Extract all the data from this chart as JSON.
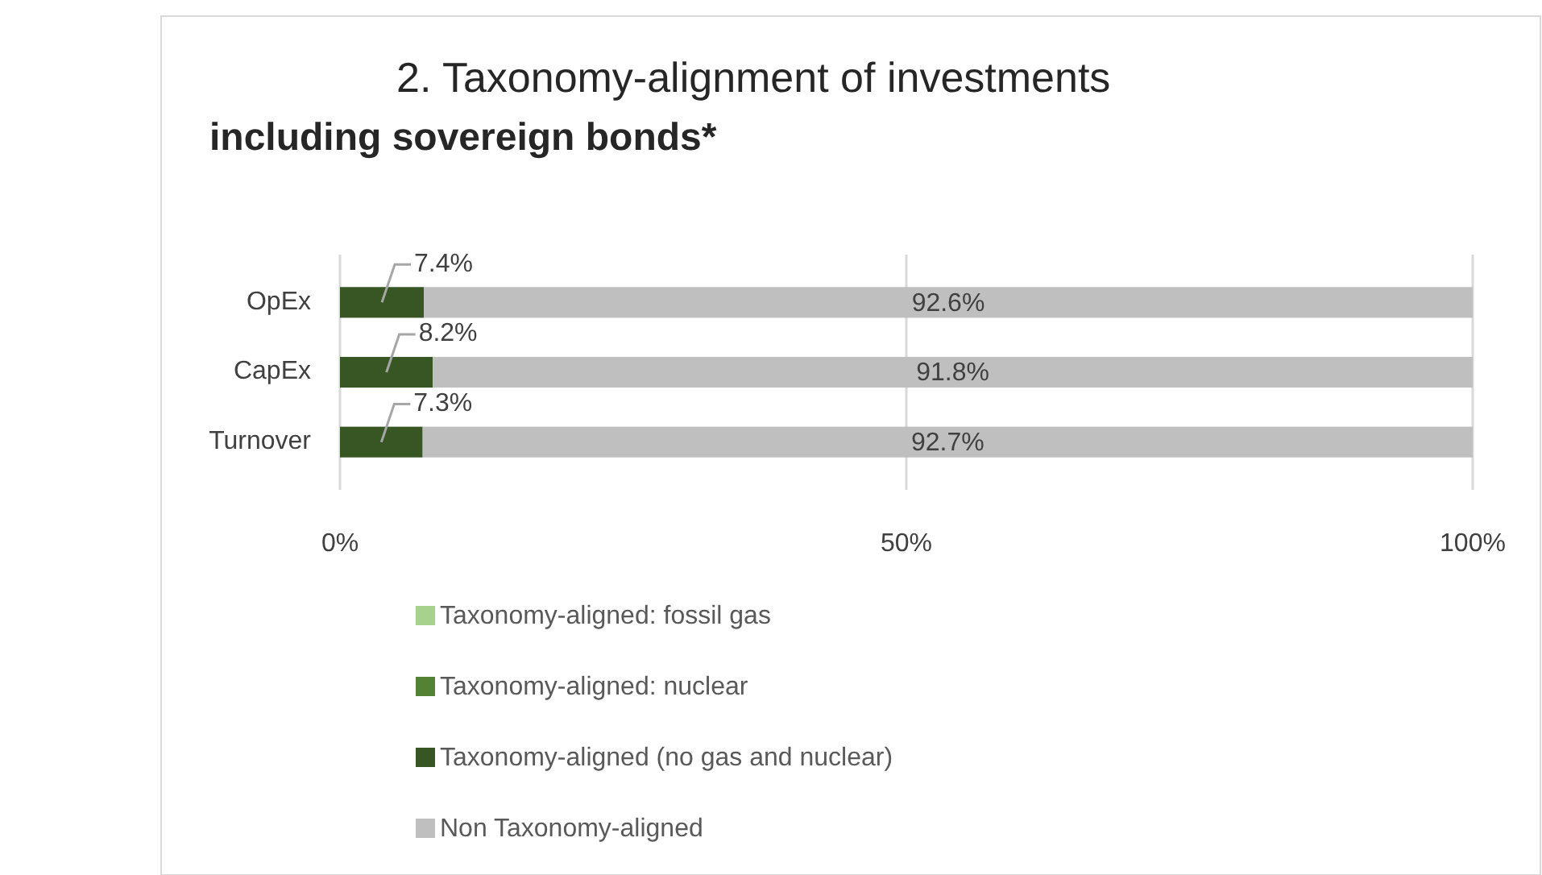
{
  "chart_data": {
    "type": "bar",
    "orientation": "horizontal",
    "stacked": true,
    "title": "2. Taxonomy-alignment of investments",
    "subtitle": "including sovereign bonds*",
    "categories": [
      "OpEx",
      "CapEx",
      "Turnover"
    ],
    "series": [
      {
        "name": "Taxonomy-aligned: fossil gas",
        "color": "#a9d18e",
        "values": [
          0,
          0,
          0
        ],
        "value_labels": [
          null,
          null,
          null
        ]
      },
      {
        "name": "Taxonomy-aligned: nuclear",
        "color": "#548235",
        "values": [
          0,
          0,
          0
        ],
        "value_labels": [
          null,
          null,
          null
        ]
      },
      {
        "name": "Taxonomy-aligned (no gas and nuclear)",
        "color": "#375623",
        "values": [
          7.4,
          8.2,
          7.3
        ],
        "value_labels": [
          "7.4%",
          "8.2%",
          "7.3%"
        ]
      },
      {
        "name": "Non Taxonomy-aligned",
        "color": "#bfbfbf",
        "values": [
          92.6,
          91.8,
          92.7
        ],
        "value_labels": [
          "92.6%",
          "91.8%",
          "92.7%"
        ]
      }
    ],
    "xlim": [
      0,
      100
    ],
    "xticks": [
      {
        "value": 0,
        "label": "0%"
      },
      {
        "value": 50,
        "label": "50%"
      },
      {
        "value": 100,
        "label": "100%"
      }
    ],
    "grid": "x",
    "legend": "bottom"
  }
}
